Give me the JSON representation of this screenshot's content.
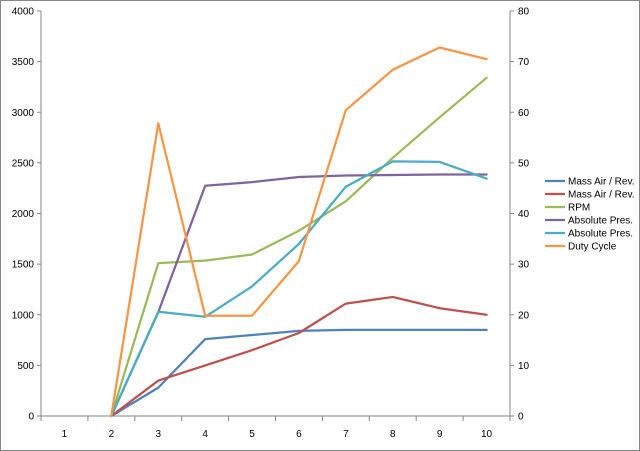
{
  "chart_data": {
    "type": "line",
    "title": "",
    "xlabel": "",
    "ylabel": "",
    "categories": [
      "1",
      "2",
      "3",
      "4",
      "5",
      "6",
      "7",
      "8",
      "9",
      "10"
    ],
    "y_left": {
      "min": 0,
      "max": 4000,
      "step": 500,
      "ticks": [
        "0",
        "500",
        "1000",
        "1500",
        "2000",
        "2500",
        "3000",
        "3500",
        "4000"
      ]
    },
    "y_right": {
      "min": 0,
      "max": 80,
      "step": 10,
      "ticks": [
        "0",
        "10",
        "20",
        "30",
        "40",
        "50",
        "60",
        "70",
        "80"
      ]
    },
    "grid": false,
    "legend_position": "right",
    "series": [
      {
        "name": "Mass Air / Rev.",
        "axis": "left",
        "color": "#4F81BD",
        "values": [
          null,
          0,
          280,
          760,
          800,
          840,
          850,
          850,
          850,
          850
        ]
      },
      {
        "name": "Mass Air / Rev.",
        "axis": "left",
        "color": "#C0504D",
        "values": [
          null,
          0,
          350,
          500,
          650,
          820,
          1110,
          1175,
          1065,
          1000
        ]
      },
      {
        "name": "RPM",
        "axis": "left",
        "color": "#9BBB59",
        "values": [
          null,
          0,
          1510,
          1535,
          1595,
          1830,
          2120,
          2550,
          2950,
          3340
        ]
      },
      {
        "name": "Absolute Pres.",
        "axis": "right",
        "color": "#8064A2",
        "values": [
          null,
          0,
          20.5,
          45.5,
          46.2,
          47.2,
          47.5,
          47.6,
          47.7,
          47.7
        ]
      },
      {
        "name": "Absolute Pres.",
        "axis": "right",
        "color": "#4BACC6",
        "values": [
          null,
          0,
          20.6,
          19.6,
          25.6,
          34.0,
          45.3,
          50.3,
          50.2,
          46.9
        ]
      },
      {
        "name": "Duty Cycle",
        "axis": "right",
        "color": "#F79646",
        "values": [
          null,
          0,
          57.8,
          19.8,
          19.8,
          30.6,
          60.4,
          68.4,
          72.8,
          70.5
        ]
      }
    ]
  }
}
